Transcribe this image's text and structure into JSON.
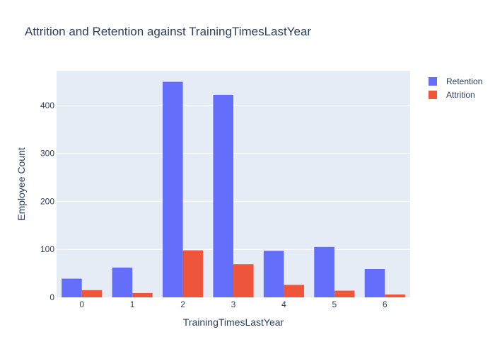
{
  "chart_data": {
    "type": "bar",
    "title": "Attrition and Retention against TrainingTimesLastYear",
    "xlabel": "TrainingTimesLastYear",
    "ylabel": "Employee Count",
    "categories": [
      "0",
      "1",
      "2",
      "3",
      "4",
      "5",
      "6"
    ],
    "series": [
      {
        "name": "Retention",
        "color": "#636efa",
        "values": [
          39,
          62,
          449,
          422,
          97,
          105,
          59
        ]
      },
      {
        "name": "Attrition",
        "color": "#ef553b",
        "values": [
          15,
          9,
          98,
          69,
          26,
          14,
          6
        ]
      }
    ],
    "ylim": [
      0,
      472
    ],
    "yticks": [
      0,
      100,
      200,
      300,
      400
    ],
    "grid": true,
    "legend": "top-right",
    "background": "#e5ecf6"
  }
}
